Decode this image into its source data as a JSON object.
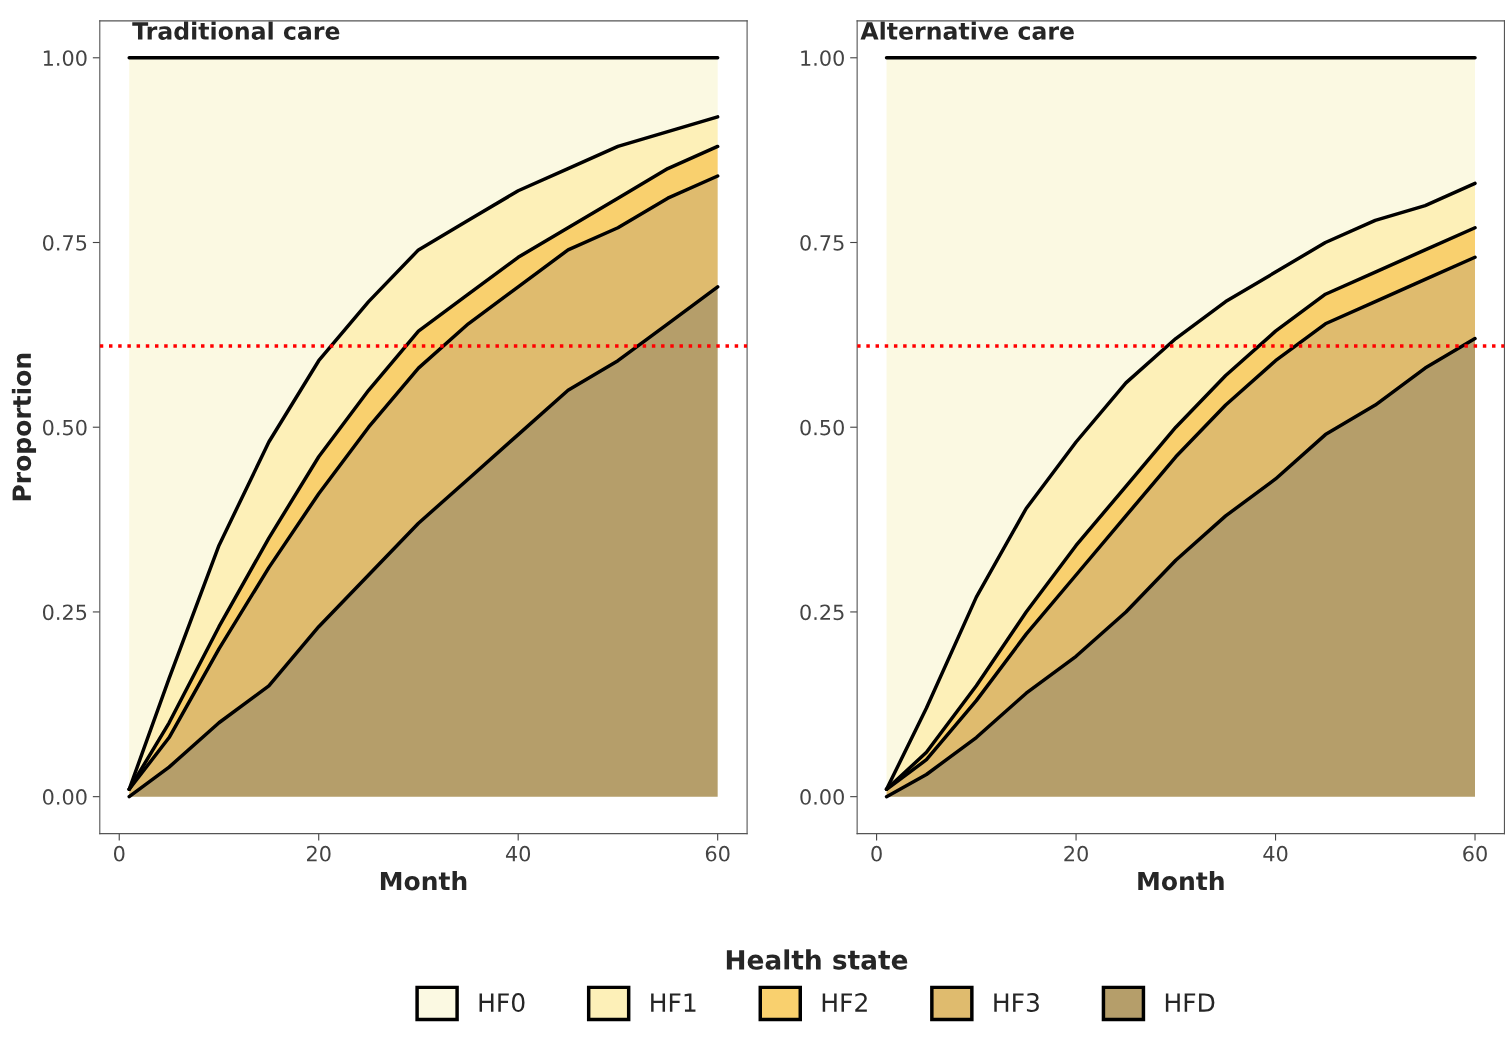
{
  "chart_data": [
    {
      "type": "area",
      "stacked": true,
      "title": "Traditional care",
      "xlabel": "Month",
      "ylabel": "Proportion",
      "legend_title": "Health state",
      "legend": "bottom",
      "x": [
        1,
        5,
        10,
        15,
        20,
        25,
        30,
        35,
        40,
        45,
        50,
        55,
        60
      ],
      "xlim": [
        -1.95,
        62.95
      ],
      "ylim": [
        -0.05,
        1.05
      ],
      "xticks": [
        0,
        20,
        40,
        60
      ],
      "yticks": [
        {
          "value": 0,
          "label": "0.00"
        },
        {
          "value": 0.25,
          "label": "0.25"
        },
        {
          "value": 0.5,
          "label": "0.50"
        },
        {
          "value": 0.75,
          "label": "0.75"
        },
        {
          "value": 1,
          "label": "1.00"
        }
      ],
      "grid": false,
      "ref_lines": [
        {
          "axis": "y",
          "value": 0.61,
          "color": "#ff0000",
          "line_style": "dotted"
        }
      ],
      "series": [
        {
          "name": "HFD",
          "color": "#b59e6a",
          "values": [
            0,
            0.04,
            0.1,
            0.15,
            0.23,
            0.3,
            0.37,
            0.43,
            0.49,
            0.55,
            0.59,
            0.64,
            0.69
          ]
        },
        {
          "name": "HF3",
          "color": "#dfbb6e",
          "values": [
            0.01,
            0.04,
            0.1,
            0.16,
            0.18,
            0.2,
            0.21,
            0.21,
            0.2,
            0.19,
            0.18,
            0.17,
            0.15
          ]
        },
        {
          "name": "HF2",
          "color": "#f9d06e",
          "values": [
            0,
            0.02,
            0.03,
            0.04,
            0.05,
            0.05,
            0.05,
            0.04,
            0.04,
            0.03,
            0.04,
            0.04,
            0.04
          ]
        },
        {
          "name": "HF1",
          "color": "#fdf0b8",
          "values": [
            0,
            0.06,
            0.11,
            0.13,
            0.13,
            0.12,
            0.11,
            0.1,
            0.09,
            0.08,
            0.07,
            0.05,
            0.04
          ]
        },
        {
          "name": "HF0",
          "color": "#fbf9e2",
          "values": [
            0.99,
            0.84,
            0.66,
            0.52,
            0.41,
            0.33,
            0.26,
            0.22,
            0.18,
            0.15,
            0.12,
            0.1,
            0.08
          ]
        }
      ]
    },
    {
      "type": "area",
      "stacked": true,
      "title": "Alternative care",
      "xlabel": "Month",
      "x": [
        1,
        5,
        10,
        15,
        20,
        25,
        30,
        35,
        40,
        45,
        50,
        55,
        60
      ],
      "xlim": [
        -1.95,
        62.95
      ],
      "ylim": [
        -0.05,
        1.05
      ],
      "xticks": [
        0,
        20,
        40,
        60
      ],
      "yticks": [
        {
          "value": 0,
          "label": "0.00"
        },
        {
          "value": 0.25,
          "label": "0.25"
        },
        {
          "value": 0.5,
          "label": "0.50"
        },
        {
          "value": 0.75,
          "label": "0.75"
        },
        {
          "value": 1,
          "label": "1.00"
        }
      ],
      "grid": false,
      "ref_lines": [
        {
          "axis": "y",
          "value": 0.61,
          "color": "#ff0000",
          "line_style": "dotted"
        }
      ],
      "series": [
        {
          "color": "#b59e6a",
          "values": [
            0,
            0.03,
            0.08,
            0.14,
            0.19,
            0.25,
            0.32,
            0.38,
            0.43,
            0.49,
            0.53,
            0.58,
            0.62
          ]
        },
        {
          "color": "#dfbb6e",
          "values": [
            0.01,
            0.02,
            0.05,
            0.08,
            0.11,
            0.13,
            0.14,
            0.15,
            0.16,
            0.15,
            0.14,
            0.12,
            0.11
          ]
        },
        {
          "color": "#f9d06e",
          "values": [
            0,
            0.01,
            0.02,
            0.03,
            0.04,
            0.04,
            0.04,
            0.04,
            0.04,
            0.04,
            0.04,
            0.04,
            0.04
          ]
        },
        {
          "color": "#fdf0b8",
          "values": [
            0,
            0.06,
            0.12,
            0.14,
            0.14,
            0.14,
            0.12,
            0.1,
            0.08,
            0.07,
            0.07,
            0.06,
            0.06
          ]
        },
        {
          "color": "#fbf9e2",
          "values": [
            0.99,
            0.88,
            0.73,
            0.61,
            0.52,
            0.44,
            0.38,
            0.33,
            0.29,
            0.25,
            0.22,
            0.2,
            0.17
          ]
        }
      ]
    }
  ]
}
